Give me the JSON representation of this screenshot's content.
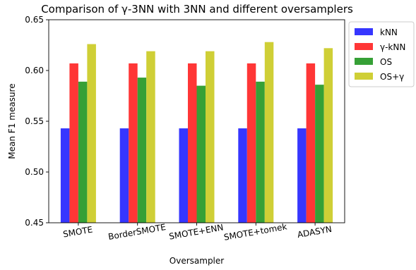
{
  "chart_data": {
    "type": "bar",
    "title": "Comparison of γ-3NN with 3NN and different oversamplers",
    "xlabel": "Oversampler",
    "ylabel": "Mean F1 measure",
    "ylim": [
      0.45,
      0.65
    ],
    "yticks": [
      "0.45",
      "0.50",
      "0.55",
      "0.60",
      "0.65"
    ],
    "categories": [
      "SMOTE",
      "BorderSMOTE",
      "SMOTE+ENN",
      "SMOTE+tomek",
      "ADASYN"
    ],
    "series": [
      {
        "name": "kNN",
        "color": "#3636ff",
        "values": [
          0.543,
          0.543,
          0.543,
          0.543,
          0.543
        ]
      },
      {
        "name": "γ-kNN",
        "color": "#ff3636",
        "values": [
          0.607,
          0.607,
          0.607,
          0.607,
          0.607
        ]
      },
      {
        "name": "OS",
        "color": "#36a036",
        "values": [
          0.589,
          0.593,
          0.585,
          0.589,
          0.586
        ]
      },
      {
        "name": "OS+γ",
        "color": "#cfcf36",
        "values": [
          0.626,
          0.619,
          0.619,
          0.628,
          0.622
        ]
      }
    ],
    "legend_position": "outside-top-right",
    "grid": false
  }
}
